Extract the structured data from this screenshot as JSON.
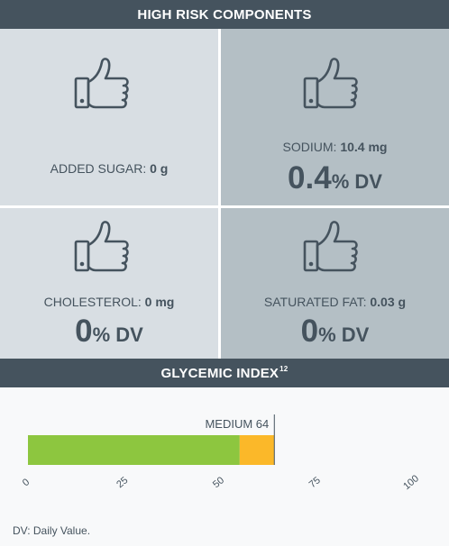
{
  "sections": {
    "high_risk_title": "HIGH RISK COMPONENTS",
    "glycemic_title": "GLYCEMIC INDEX",
    "glycemic_sup": "12"
  },
  "components": {
    "added_sugar": {
      "label": "ADDED SUGAR:",
      "value": "0 g"
    },
    "sodium": {
      "label": "SODIUM:",
      "value": "10.4 mg",
      "dv_number": "0.4",
      "dv_unit": "% DV"
    },
    "cholesterol": {
      "label": "CHOLESTEROL:",
      "value": "0 mg",
      "dv_number": "0",
      "dv_unit": "% DV"
    },
    "saturated_fat": {
      "label": "SATURATED FAT:",
      "value": "0.03 g",
      "dv_number": "0",
      "dv_unit": "% DV"
    }
  },
  "icons": {
    "thumb": "thumbs-up-icon"
  },
  "chart_data": {
    "type": "bar",
    "orientation": "horizontal",
    "annotation": "MEDIUM 64",
    "marker_value": 64,
    "xlim": [
      0,
      100
    ],
    "ticks": [
      0,
      25,
      50,
      75,
      100
    ],
    "segments": [
      {
        "from": 0,
        "to": 55,
        "color": "#8dc63f"
      },
      {
        "from": 55,
        "to": 64,
        "color": "#fbb829"
      }
    ]
  },
  "colors": {
    "header": "#45535e",
    "cell_light": "#d8dee3",
    "cell_dark": "#b4bfc5",
    "green": "#8dc63f",
    "orange": "#fbb829"
  },
  "footer": {
    "note": "DV: Daily Value."
  }
}
